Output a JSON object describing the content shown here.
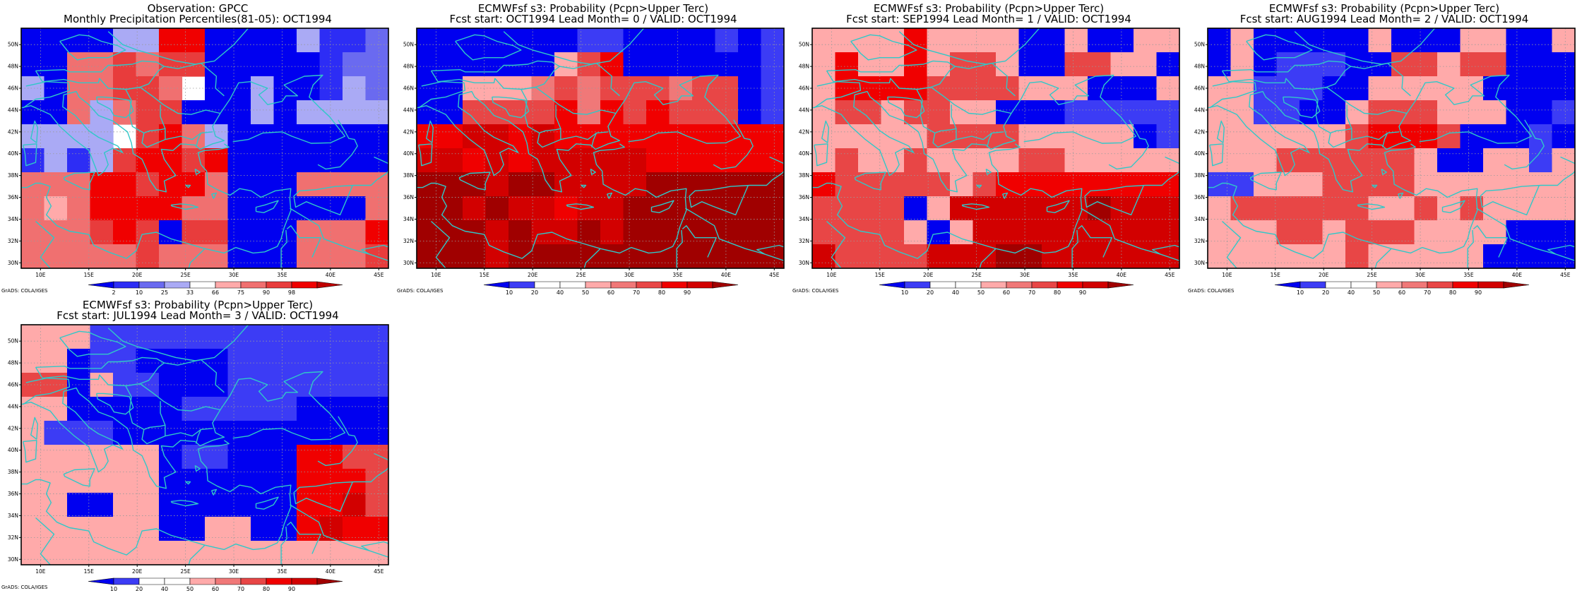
{
  "credit": "GrADS: COLA/IGES",
  "palettes": {
    "percentile": {
      "labels": [
        "2",
        "10",
        "25",
        "33",
        "66",
        "75",
        "90",
        "98"
      ],
      "colors": [
        "#0000f0",
        "#2d2df5",
        "#6a6af0",
        "#aaaaf5",
        "#ffffff",
        "#ffaaaa",
        "#f07070",
        "#e83c3c",
        "#f00000",
        "#c00000"
      ]
    },
    "probability": {
      "labels": [
        "10",
        "20",
        "40",
        "50",
        "60",
        "70",
        "80",
        "90"
      ],
      "colors": [
        "#0000f0",
        "#3c3cf5",
        "#ffffff",
        "#ffffff",
        "#ffaaaa",
        "#f07878",
        "#e84646",
        "#f00000",
        "#d20000",
        "#a00000"
      ]
    }
  },
  "map": {
    "lon_ticks": [
      "10E",
      "15E",
      "20E",
      "25E",
      "30E",
      "35E",
      "40E",
      "45E"
    ],
    "lat_ticks": [
      "30N",
      "32N",
      "34N",
      "36N",
      "38N",
      "40N",
      "42N",
      "44N",
      "46N",
      "48N",
      "50N"
    ],
    "lon_range": [
      8,
      46
    ],
    "lat_range": [
      29.5,
      51.5
    ]
  },
  "chart_data": [
    {
      "type": "heatmap",
      "title": [
        "Observation: GPCC",
        "Monthly Precipitation Percentiles(81-05): OCT1994"
      ],
      "palette": "percentile",
      "rows_north_to_south": [
        "0000338800003112",
        "0066767700000122",
        "3066776400300132",
        "0063677000303333",
        "3333478630000000",
        "1313788780000000",
        "6668878860006666",
        "6568888660000006",
        "6667870770006668",
        "6666676660006667"
      ]
    },
    {
      "type": "heatmap",
      "title": [
        "ECMWFsf s3: Probability (Pcpn>Upper Terc)",
        "Fcst start: OCT1994   Lead Month= 0 / VALID: OCT1994"
      ],
      "palette": "probability",
      "rows_north_to_south": [
        "0000000110000101",
        "0000004670000001",
        "0044456566656601",
        "0066667576766601",
        "7788787777777777",
        "8878788888777777",
        "9998998888999999",
        "9989887889999999",
        "9998988989999999",
        "9998999999999999"
      ]
    },
    {
      "type": "heatmap",
      "title": [
        "ECMWFsf s3: Probability (Pcpn>Upper Terc)",
        "Fcst start: SEP1994   Lead Month= 1 / VALID: OCT1994"
      ],
      "palette": "probability",
      "rows_north_to_south": [
        "4444744440040044",
        "4744746640066440",
        "4777766664440004",
        "4664664400011111",
        "4444466664444401",
        "4644644446644444",
        "7666664677777777",
        "6666048888889888",
        "6666404888888888",
        "8666688899888888"
      ]
    },
    {
      "type": "heatmap",
      "title": [
        "ECMWFsf s3: Probability (Pcpn>Upper Terc)",
        "Fcst start: AUG1994   Lead Month= 2 / VALID: OCT1994"
      ],
      "palette": "probability",
      "rows_north_to_south": [
        "0400000400044004",
        "0401110066466000",
        "4411100444440000",
        "4411004666444001",
        "4444446777600010",
        "4446666664004414",
        "1144466664444444",
        "4666666446464444",
        "4446646664444000",
        "4444446444440000"
      ]
    },
    {
      "type": "heatmap",
      "title": [
        "ECMWFsf s3: Probability (Pcpn>Upper Terc)",
        "Fcst start: JUL1994   Lead Month= 3 / VALID: OCT1994"
      ],
      "palette": "probability",
      "rows_north_to_south": [
        "4441111111111111",
        "4401100001111111",
        "6604110001111111",
        "4400000111110000",
        "4111000000000000",
        "4444440110007766",
        "4444440000007776",
        "4400440000007786",
        "4444440044007877",
        "4444444444444444"
      ]
    }
  ]
}
